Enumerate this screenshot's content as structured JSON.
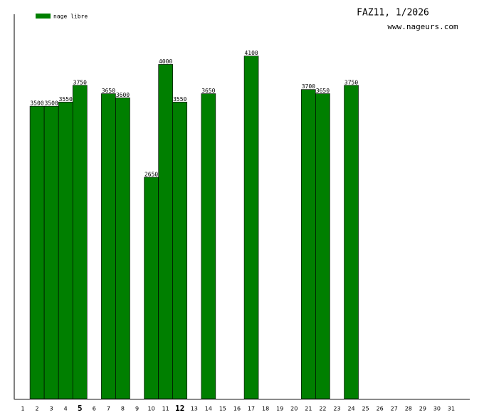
{
  "chart_data": {
    "type": "bar",
    "title": "FAZ11, 1/2026",
    "subtitle": "www.nageurs.com",
    "categories": [
      "1",
      "2",
      "3",
      "4",
      "5",
      "6",
      "7",
      "8",
      "9",
      "10",
      "11",
      "12",
      "13",
      "14",
      "15",
      "16",
      "17",
      "18",
      "19",
      "20",
      "21",
      "22",
      "23",
      "24",
      "25",
      "26",
      "27",
      "28",
      "29",
      "30",
      "31"
    ],
    "emphasized": [
      "5",
      "12"
    ],
    "series": [
      {
        "name": "nage libre",
        "color": "#007f00",
        "values": [
          null,
          3500,
          3500,
          3550,
          3750,
          null,
          3650,
          3600,
          null,
          2650,
          4000,
          3550,
          null,
          3650,
          null,
          null,
          4100,
          null,
          null,
          null,
          3700,
          3650,
          null,
          3750,
          null,
          null,
          null,
          null,
          null,
          null,
          null
        ]
      }
    ],
    "ylim": [
      0,
      4600
    ],
    "legend": "top-left"
  }
}
